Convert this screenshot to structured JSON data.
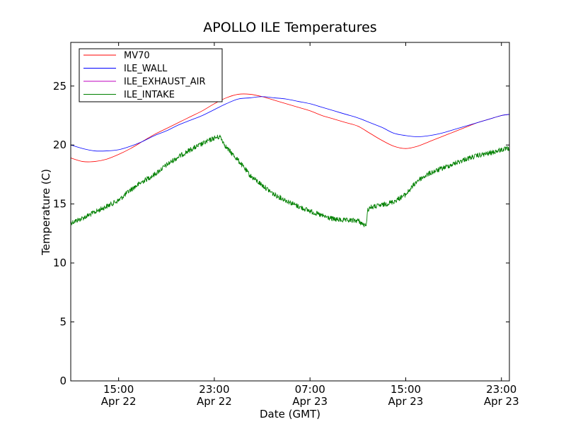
{
  "chart_data": {
    "type": "line",
    "title": "APOLLO ILE Temperatures",
    "xlabel": "Date (GMT)",
    "ylabel": "Temperature (C)",
    "xlim": [
      "2013-04-22 11:00",
      "2013-04-23 23:40"
    ],
    "ylim": [
      0,
      28.7
    ],
    "grid": false,
    "legend_position": "top-left",
    "x_ticks": [
      {
        "value": "2013-04-22 15:00",
        "time": "15:00",
        "date": "Apr 22"
      },
      {
        "value": "2013-04-22 23:00",
        "time": "23:00",
        "date": "Apr 22"
      },
      {
        "value": "2013-04-23 07:00",
        "time": "07:00",
        "date": "Apr 23"
      },
      {
        "value": "2013-04-23 15:00",
        "time": "15:00",
        "date": "Apr 23"
      },
      {
        "value": "2013-04-23 23:00",
        "time": "23:00",
        "date": "Apr 23"
      }
    ],
    "y_ticks": [
      0,
      5,
      10,
      15,
      20,
      25
    ],
    "series": [
      {
        "name": "MV70",
        "color": "#ff0000",
        "x": [
          "2013-04-22 11:00",
          "2013-04-22 12:00",
          "2013-04-22 13:00",
          "2013-04-22 14:00",
          "2013-04-22 15:00",
          "2013-04-22 16:00",
          "2013-04-22 17:00",
          "2013-04-22 18:00",
          "2013-04-22 19:00",
          "2013-04-22 20:00",
          "2013-04-22 21:00",
          "2013-04-22 22:00",
          "2013-04-22 23:00",
          "2013-04-23 00:00",
          "2013-04-23 01:00",
          "2013-04-23 02:00",
          "2013-04-23 03:00",
          "2013-04-23 04:00",
          "2013-04-23 05:00",
          "2013-04-23 06:00",
          "2013-04-23 07:00",
          "2013-04-23 08:00",
          "2013-04-23 09:00",
          "2013-04-23 10:00",
          "2013-04-23 11:00",
          "2013-04-23 12:00",
          "2013-04-23 13:00",
          "2013-04-23 14:00",
          "2013-04-23 15:00",
          "2013-04-23 16:00",
          "2013-04-23 17:00",
          "2013-04-23 18:00",
          "2013-04-23 19:00",
          "2013-04-23 20:00",
          "2013-04-23 21:00",
          "2013-04-23 22:00",
          "2013-04-23 23:00",
          "2013-04-23 23:40"
        ],
        "y": [
          18.9,
          18.6,
          18.6,
          18.8,
          19.2,
          19.7,
          20.3,
          20.9,
          21.4,
          21.9,
          22.4,
          22.9,
          23.5,
          24.0,
          24.3,
          24.3,
          24.1,
          23.8,
          23.5,
          23.2,
          22.9,
          22.5,
          22.2,
          21.9,
          21.6,
          21.0,
          20.4,
          19.9,
          19.7,
          19.9,
          20.3,
          20.7,
          21.1,
          21.5,
          21.9,
          22.2,
          22.5,
          22.6
        ]
      },
      {
        "name": "ILE_WALL",
        "color": "#0000ff",
        "x": [
          "2013-04-22 11:00",
          "2013-04-22 12:00",
          "2013-04-22 13:00",
          "2013-04-22 14:00",
          "2013-04-22 15:00",
          "2013-04-22 16:00",
          "2013-04-22 17:00",
          "2013-04-22 18:00",
          "2013-04-22 19:00",
          "2013-04-22 20:00",
          "2013-04-22 21:00",
          "2013-04-22 22:00",
          "2013-04-22 23:00",
          "2013-04-23 00:00",
          "2013-04-23 01:00",
          "2013-04-23 02:00",
          "2013-04-23 03:00",
          "2013-04-23 04:00",
          "2013-04-23 05:00",
          "2013-04-23 06:00",
          "2013-04-23 07:00",
          "2013-04-23 08:00",
          "2013-04-23 09:00",
          "2013-04-23 10:00",
          "2013-04-23 11:00",
          "2013-04-23 12:00",
          "2013-04-23 13:00",
          "2013-04-23 14:00",
          "2013-04-23 15:00",
          "2013-04-23 16:00",
          "2013-04-23 17:00",
          "2013-04-23 18:00",
          "2013-04-23 19:00",
          "2013-04-23 20:00",
          "2013-04-23 21:00",
          "2013-04-23 22:00",
          "2013-04-23 23:00",
          "2013-04-23 23:40"
        ],
        "y": [
          20.0,
          19.7,
          19.5,
          19.5,
          19.6,
          19.9,
          20.3,
          20.8,
          21.2,
          21.7,
          22.1,
          22.5,
          23.0,
          23.5,
          23.9,
          24.0,
          24.1,
          24.0,
          23.9,
          23.7,
          23.5,
          23.2,
          22.9,
          22.6,
          22.3,
          21.9,
          21.5,
          21.0,
          20.8,
          20.7,
          20.8,
          21.0,
          21.3,
          21.6,
          21.9,
          22.2,
          22.5,
          22.6
        ]
      },
      {
        "name": "ILE_EXHAUST_AIR",
        "color": "#bf00bf",
        "x": [],
        "y": []
      },
      {
        "name": "ILE_INTAKE",
        "color": "#008000",
        "x": [
          "2013-04-22 11:00",
          "2013-04-22 12:00",
          "2013-04-22 13:00",
          "2013-04-22 14:00",
          "2013-04-22 15:00",
          "2013-04-22 16:00",
          "2013-04-22 17:00",
          "2013-04-22 18:00",
          "2013-04-22 19:00",
          "2013-04-22 20:00",
          "2013-04-22 21:00",
          "2013-04-22 22:00",
          "2013-04-22 23:00",
          "2013-04-22 23:30",
          "2013-04-23 00:00",
          "2013-04-23 01:00",
          "2013-04-23 02:00",
          "2013-04-23 03:00",
          "2013-04-23 04:00",
          "2013-04-23 05:00",
          "2013-04-23 06:00",
          "2013-04-23 07:00",
          "2013-04-23 08:00",
          "2013-04-23 09:00",
          "2013-04-23 10:00",
          "2013-04-23 11:00",
          "2013-04-23 11:40",
          "2013-04-23 11:50",
          "2013-04-23 12:00",
          "2013-04-23 13:00",
          "2013-04-23 14:00",
          "2013-04-23 15:00",
          "2013-04-23 16:00",
          "2013-04-23 17:00",
          "2013-04-23 18:00",
          "2013-04-23 19:00",
          "2013-04-23 20:00",
          "2013-04-23 21:00",
          "2013-04-23 22:00",
          "2013-04-23 23:00",
          "2013-04-23 23:40"
        ],
        "y": [
          13.4,
          13.8,
          14.3,
          14.8,
          15.3,
          16.2,
          16.9,
          17.5,
          18.3,
          19.0,
          19.6,
          20.1,
          20.6,
          20.7,
          19.8,
          18.7,
          17.4,
          16.6,
          15.8,
          15.3,
          14.8,
          14.4,
          14.0,
          13.7,
          13.6,
          13.6,
          13.1,
          14.5,
          14.7,
          14.9,
          15.2,
          15.8,
          17.0,
          17.6,
          18.0,
          18.4,
          18.8,
          19.1,
          19.3,
          19.6,
          19.7
        ]
      }
    ]
  }
}
